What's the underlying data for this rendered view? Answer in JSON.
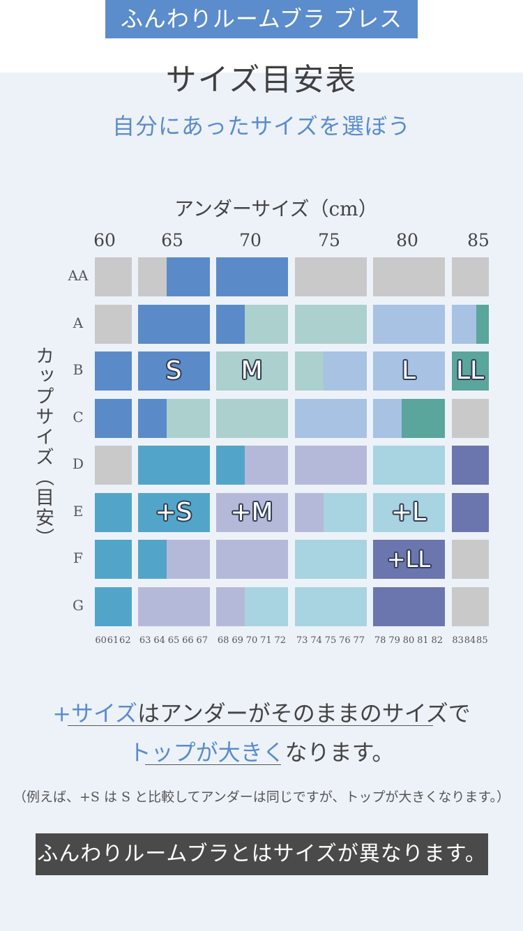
{
  "brand": "ふんわりルームブラ ブレス",
  "title": "サイズ目安表",
  "subtitle": "自分にあったサイズを選ぼう",
  "x_axis_title": "アンダーサイズ（cm）",
  "y_axis_title": "カップサイズ（目安）",
  "under_major": [
    "60",
    "65",
    "70",
    "75",
    "80",
    "85"
  ],
  "under_minor": [
    "60",
    "61",
    "62",
    "63",
    "64",
    "65",
    "66",
    "67",
    "68",
    "69",
    "70",
    "71",
    "72",
    "73",
    "74",
    "75",
    "76",
    "77",
    "78",
    "79",
    "80",
    "81",
    "82",
    "83",
    "84",
    "85"
  ],
  "cups": [
    "AA",
    "A",
    "B",
    "C",
    "D",
    "E",
    "F",
    "G"
  ],
  "colors": {
    "none": "#c9c9c9",
    "S": "#5a8bc8",
    "M": "#abd0cd",
    "L": "#a7c2e3",
    "LL": "#5aa59c",
    "plusS": "#52a5c8",
    "plusM": "#b5b9d9",
    "plusL": "#a8d3e1",
    "plusLL": "#6b75ae"
  },
  "size_grid": [
    [
      "none",
      "none",
      "none",
      "none",
      "none",
      "S",
      "S",
      "S",
      "S",
      "S",
      "S",
      "S",
      "S",
      "none",
      "none",
      "none",
      "none",
      "none",
      "none",
      "none",
      "none",
      "none",
      "none",
      "none",
      "none",
      "none"
    ],
    [
      "none",
      "none",
      "none",
      "S",
      "S",
      "S",
      "S",
      "S",
      "S",
      "S",
      "M",
      "M",
      "M",
      "M",
      "M",
      "M",
      "M",
      "M",
      "L",
      "L",
      "L",
      "L",
      "L",
      "L",
      "L",
      "LL"
    ],
    [
      "S",
      "S",
      "S",
      "S",
      "S",
      "S",
      "S",
      "S",
      "M",
      "M",
      "M",
      "M",
      "M",
      "M",
      "M",
      "L",
      "L",
      "L",
      "L",
      "L",
      "L",
      "L",
      "L",
      "LL",
      "LL",
      "LL"
    ],
    [
      "S",
      "S",
      "S",
      "S",
      "S",
      "M",
      "M",
      "M",
      "M",
      "M",
      "M",
      "M",
      "M",
      "L",
      "L",
      "L",
      "L",
      "L",
      "L",
      "L",
      "LL",
      "LL",
      "LL",
      "none",
      "none",
      "none"
    ],
    [
      "none",
      "none",
      "none",
      "plusS",
      "plusS",
      "plusS",
      "plusS",
      "plusS",
      "plusS",
      "plusS",
      "plusM",
      "plusM",
      "plusM",
      "plusM",
      "plusM",
      "plusM",
      "plusM",
      "plusM",
      "plusL",
      "plusL",
      "plusL",
      "plusL",
      "plusL",
      "plusLL",
      "plusLL",
      "plusLL"
    ],
    [
      "plusS",
      "plusS",
      "plusS",
      "plusS",
      "plusS",
      "plusS",
      "plusS",
      "plusS",
      "plusM",
      "plusM",
      "plusM",
      "plusM",
      "plusM",
      "plusM",
      "plusM",
      "plusL",
      "plusL",
      "plusL",
      "plusL",
      "plusL",
      "plusL",
      "plusL",
      "plusL",
      "plusLL",
      "plusLL",
      "plusLL"
    ],
    [
      "plusS",
      "plusS",
      "plusS",
      "plusS",
      "plusS",
      "plusM",
      "plusM",
      "plusM",
      "plusM",
      "plusM",
      "plusM",
      "plusM",
      "plusM",
      "plusL",
      "plusL",
      "plusL",
      "plusL",
      "plusL",
      "plusLL",
      "plusLL",
      "plusLL",
      "plusLL",
      "plusLL",
      "none",
      "none",
      "none"
    ],
    [
      "plusS",
      "plusS",
      "plusS",
      "plusM",
      "plusM",
      "plusM",
      "plusM",
      "plusM",
      "plusM",
      "plusM",
      "plusL",
      "plusL",
      "plusL",
      "plusL",
      "plusL",
      "plusL",
      "plusL",
      "plusL",
      "plusLL",
      "plusLL",
      "plusLL",
      "plusLL",
      "plusLL",
      "none",
      "none",
      "none"
    ]
  ],
  "size_labels": [
    {
      "text": "S",
      "cup": "B",
      "under": "65"
    },
    {
      "text": "M",
      "cup": "B",
      "under": "70"
    },
    {
      "text": "L",
      "cup": "B",
      "under": "80"
    },
    {
      "text": "LL",
      "cup": "B",
      "under": "85"
    },
    {
      "text": "+S",
      "cup": "E",
      "under": "65"
    },
    {
      "text": "+M",
      "cup": "E",
      "under": "70"
    },
    {
      "text": "+L",
      "cup": "E",
      "under": "80"
    },
    {
      "text": "+LL",
      "cup": "F",
      "under": "80"
    }
  ],
  "note_line1_accent": "+サイズ",
  "note_line1_rest": "はアンダーがそのままのサイズで",
  "note_line2_accent": "トップが大きく",
  "note_line2_rest": "なります。",
  "example": "（例えば、+S は S と比較してアンダーは同じですが、トップが大きくなります。）",
  "banner": "ふんわりルームブラとはサイズが異なります。"
}
